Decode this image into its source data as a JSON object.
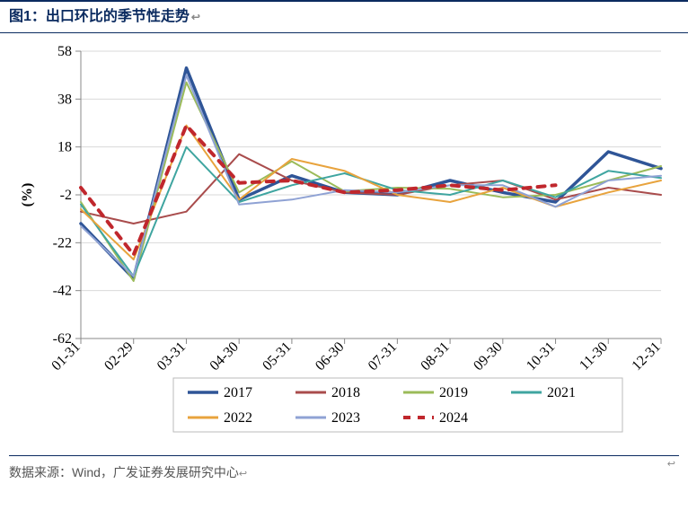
{
  "title": "图1：出口环比的季节性走势",
  "source": "数据来源：Wind，广发证券发展研究中心",
  "chart": {
    "type": "line",
    "ylabel": "(%)",
    "yaxis": {
      "min": -62,
      "max": 58,
      "ticks": [
        -62,
        -42,
        -22,
        -2,
        18,
        38,
        58
      ]
    },
    "xaxis": {
      "categories": [
        "01-31",
        "02-29",
        "03-31",
        "04-30",
        "05-31",
        "06-30",
        "07-31",
        "08-31",
        "09-30",
        "10-31",
        "11-30",
        "12-31"
      ]
    },
    "plot_background": "#ffffff",
    "gridline_color": "#d9d9d9",
    "tick_color": "#888888",
    "axis_fontsize": 16,
    "legend_layout": {
      "rows": 2,
      "cols": 4
    },
    "series": [
      {
        "name": "2017",
        "color": "#2f5597",
        "width": 3.5,
        "dash": null,
        "values": [
          -14,
          -37,
          51,
          -4,
          6,
          -1,
          -2,
          4,
          -1,
          -5,
          16,
          9
        ]
      },
      {
        "name": "2018",
        "color": "#a94c4c",
        "width": 2,
        "dash": null,
        "values": [
          -9,
          -14,
          -9,
          15,
          4,
          -1,
          -2,
          2,
          4,
          -4,
          1,
          -2
        ]
      },
      {
        "name": "2019",
        "color": "#9bbb59",
        "width": 2,
        "dash": null,
        "values": [
          -5,
          -38,
          45,
          -1,
          12,
          -0.5,
          1,
          0.5,
          -3,
          -2,
          4,
          10
        ]
      },
      {
        "name": "2021",
        "color": "#3fa5a0",
        "width": 2,
        "dash": null,
        "values": [
          -6,
          -36,
          18,
          -5,
          2,
          7,
          0,
          -2,
          4,
          -3,
          8,
          5
        ]
      },
      {
        "name": "2022",
        "color": "#e8a33d",
        "width": 2,
        "dash": null,
        "values": [
          -8,
          -29,
          27,
          -4,
          13,
          8,
          -2,
          -5,
          1,
          -7,
          -1,
          4
        ]
      },
      {
        "name": "2023",
        "color": "#8fa2d4",
        "width": 2,
        "dash": null,
        "values": [
          -15,
          -36,
          48,
          -6,
          -4,
          0,
          -1,
          2,
          2,
          -7,
          4,
          6
        ]
      },
      {
        "name": "2024",
        "color": "#c0272d",
        "width": 4,
        "dash": "8,8",
        "values": [
          1,
          -27,
          27,
          3,
          4,
          -1,
          0,
          2,
          0,
          2,
          null,
          null
        ]
      }
    ]
  }
}
